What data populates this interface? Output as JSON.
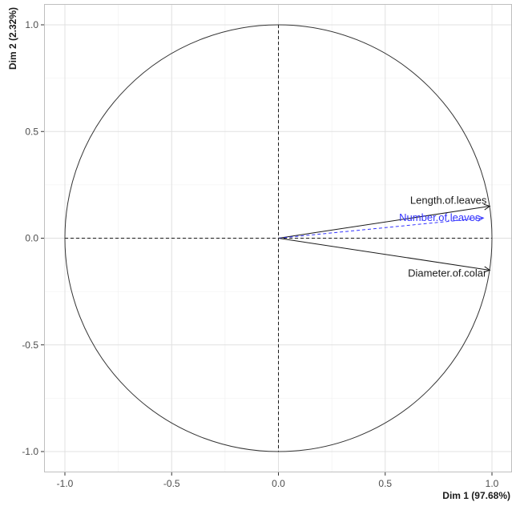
{
  "chart_data": {
    "type": "scatter",
    "subtype": "pca-variable-correlation-circle",
    "title": "",
    "xlabel": "Dim 1 (97.68%)",
    "ylabel": "Dim 2 (2.32%)",
    "xlim": [
      -1.05,
      1.05
    ],
    "ylim": [
      -1.05,
      1.05
    ],
    "x_ticks": [
      -1.0,
      -0.5,
      0.0,
      0.5,
      1.0
    ],
    "y_ticks": [
      -1.0,
      -0.5,
      0.0,
      0.5,
      1.0
    ],
    "x_tick_labels": [
      "-1.0",
      "-0.5",
      "0.0",
      "0.5",
      "1.0"
    ],
    "y_tick_labels": [
      "-1.0",
      "-0.5",
      "0.0",
      "0.5",
      "1.0"
    ],
    "grid": true,
    "unit_circle": true,
    "reference_lines": [
      0,
      0
    ],
    "colors": {
      "grid_major": "#e0e0e0",
      "grid_minor": "#efefef",
      "panel_border": "#bfbfbf",
      "default_arrow": "#1a1a1a",
      "highlight_arrow": "#3333ff"
    },
    "variables": [
      {
        "name": "Length.of.leaves",
        "x": 0.99,
        "y": 0.15,
        "color": "#1a1a1a",
        "dashed": false
      },
      {
        "name": "Number.of.leaves",
        "x": 0.96,
        "y": 0.095,
        "color": "#3333ff",
        "dashed": true
      },
      {
        "name": "Diameter.of.colar",
        "x": 0.99,
        "y": -0.15,
        "color": "#1a1a1a",
        "dashed": false
      }
    ]
  }
}
